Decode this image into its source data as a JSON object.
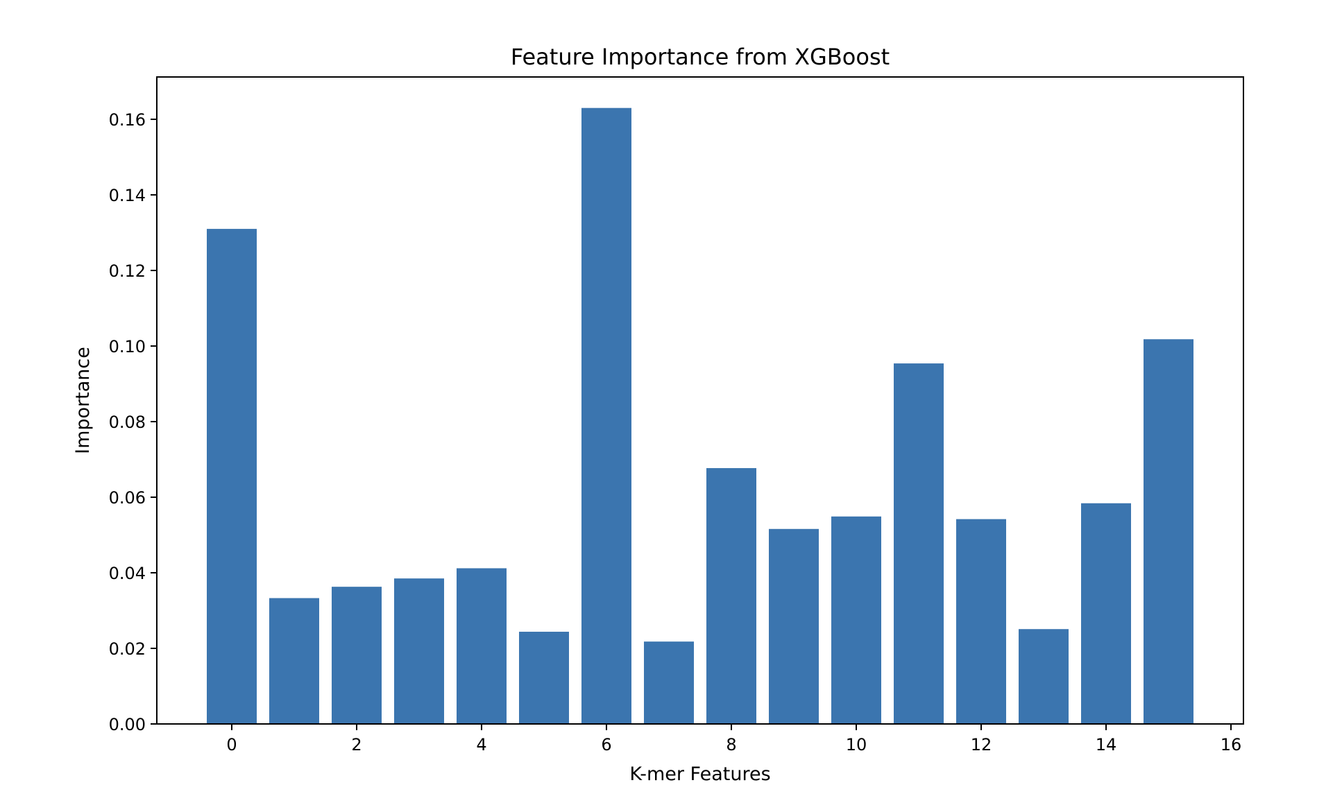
{
  "chart_data": {
    "type": "bar",
    "title": "Feature Importance from XGBoost",
    "xlabel": "K-mer Features",
    "ylabel": "Importance",
    "x": [
      0,
      1,
      2,
      3,
      4,
      5,
      6,
      7,
      8,
      9,
      10,
      11,
      12,
      13,
      14,
      15
    ],
    "values": [
      0.131,
      0.0333,
      0.0363,
      0.0385,
      0.0412,
      0.0244,
      0.163,
      0.0218,
      0.0677,
      0.0516,
      0.0549,
      0.0954,
      0.0542,
      0.0251,
      0.0584,
      0.1018
    ],
    "bar_color": "#3b75af",
    "xlim": [
      -1.2,
      16.2
    ],
    "ylim": [
      0,
      0.1712
    ],
    "xticks": [
      "0",
      "2",
      "4",
      "6",
      "8",
      "10",
      "12",
      "14",
      "16"
    ],
    "yticks": [
      "0.00",
      "0.02",
      "0.04",
      "0.06",
      "0.08",
      "0.10",
      "0.12",
      "0.14",
      "0.16"
    ],
    "grid": false,
    "legend": "none"
  }
}
